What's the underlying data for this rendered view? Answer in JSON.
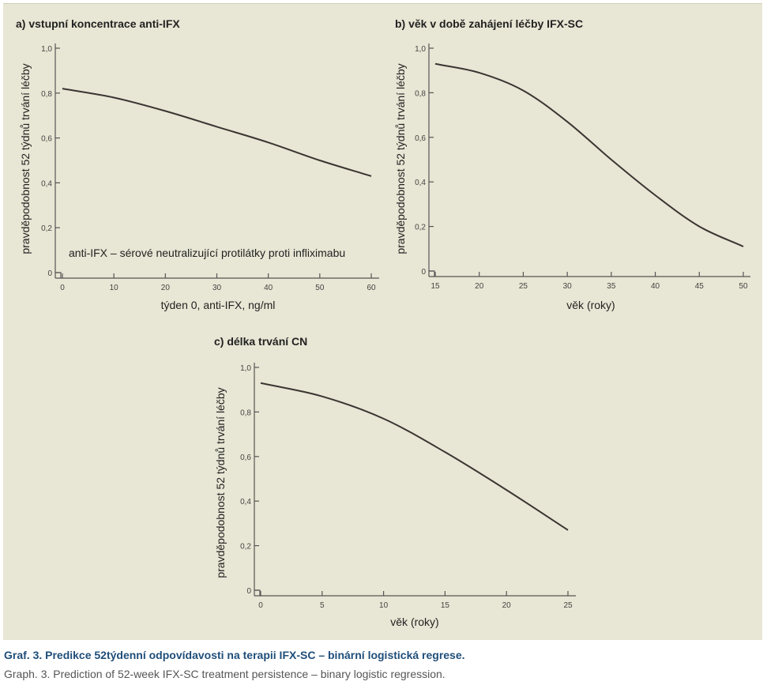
{
  "caption": {
    "cz": "Graf. 3. Predikce 52týdenní odpovídavosti na terapii IFX-SC – binární logistická regrese.",
    "en": "Graph. 3. Prediction of 52-week IFX-SC treatment persistence – binary logistic regression."
  },
  "colors": {
    "panel_background": "#e8e6d4",
    "curve": "#3a3532",
    "caption_cz": "#1f4e79",
    "caption_en": "#555555"
  },
  "chart_data": [
    {
      "type": "line",
      "title": "a) vstupní koncentrace anti-IFX",
      "xlabel": "týden 0, anti-IFX, ng/ml",
      "ylabel": "pravděpodobnost 52 týdnů trvání léčby",
      "annotation": "anti-IFX – sérové neutralizující protilátky proti infliximabu",
      "xlim": [
        0,
        60
      ],
      "ylim": [
        0,
        1
      ],
      "xticks": [
        0,
        10,
        20,
        30,
        40,
        50,
        60
      ],
      "xtick_labels": [
        "0",
        "10",
        "20",
        "30",
        "40",
        "50",
        "60"
      ],
      "yticks": [
        0,
        0.2,
        0.4,
        0.6,
        0.8,
        1.0
      ],
      "ytick_labels": [
        "0",
        "0,2",
        "0,4",
        "0,6",
        "0,8",
        "1,0"
      ],
      "grid": false,
      "series": [
        {
          "x": [
            0,
            10,
            20,
            30,
            40,
            50,
            60
          ],
          "y": [
            0.82,
            0.78,
            0.72,
            0.65,
            0.58,
            0.5,
            0.43
          ]
        }
      ]
    },
    {
      "type": "line",
      "title": "b) věk v době zahájení léčby IFX-SC",
      "xlabel": "věk (roky)",
      "ylabel": "pravděpodobnost 52 týdnů trvání léčby",
      "xlim": [
        15,
        50
      ],
      "ylim": [
        0,
        1
      ],
      "xticks": [
        15,
        20,
        25,
        30,
        35,
        40,
        45,
        50
      ],
      "xtick_labels": [
        "15",
        "20",
        "25",
        "30",
        "35",
        "40",
        "45",
        "50"
      ],
      "yticks": [
        0,
        0.2,
        0.4,
        0.6,
        0.8,
        1.0
      ],
      "ytick_labels": [
        "0",
        "0,2",
        "0,4",
        "0,6",
        "0,8",
        "1,0"
      ],
      "grid": false,
      "series": [
        {
          "x": [
            15,
            20,
            25,
            30,
            35,
            40,
            45,
            50
          ],
          "y": [
            0.93,
            0.89,
            0.81,
            0.67,
            0.5,
            0.34,
            0.2,
            0.11
          ]
        }
      ]
    },
    {
      "type": "line",
      "title": "c) délka trvání CN",
      "xlabel": "věk (roky)",
      "ylabel": "pravděpodobnost 52 týdnů trvání léčby",
      "xlim": [
        0,
        25
      ],
      "ylim": [
        0,
        1
      ],
      "xticks": [
        0,
        5,
        10,
        15,
        20,
        25
      ],
      "xtick_labels": [
        "0",
        "5",
        "10",
        "15",
        "20",
        "25"
      ],
      "yticks": [
        0,
        0.2,
        0.4,
        0.6,
        0.8,
        1.0
      ],
      "ytick_labels": [
        "0",
        "0,2",
        "0,4",
        "0,6",
        "0,8",
        "1,0"
      ],
      "grid": false,
      "series": [
        {
          "x": [
            0,
            5,
            10,
            15,
            20,
            25
          ],
          "y": [
            0.93,
            0.87,
            0.77,
            0.62,
            0.45,
            0.27
          ]
        }
      ]
    }
  ]
}
